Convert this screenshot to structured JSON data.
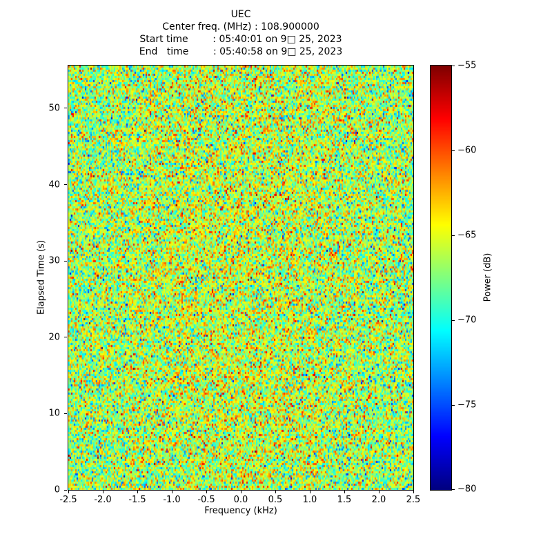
{
  "header": {
    "title": "UEC",
    "lines": [
      "Center freq. (MHz) : 108.900000",
      "Start time        : 05:40:01 on 9□ 25, 2023",
      "End   time        : 05:40:58 on 9□ 25, 2023"
    ]
  },
  "chart_data": {
    "type": "heatmap",
    "title": "UEC",
    "center_freq_mhz": "108.900000",
    "start_time": "05:40:01 on 9□ 25, 2023",
    "end_time": "05:40:58 on 9□ 25, 2023",
    "xlabel": "Frequency (kHz)",
    "ylabel": "Elapsed Time (s)",
    "colorbar_label": "Power (dB)",
    "xlim": [
      -2.5,
      2.5
    ],
    "ylim": [
      0,
      55.6
    ],
    "vmin": -80,
    "vmax": -55,
    "colormap": "jet",
    "xticks": [
      -2.5,
      -2.0,
      -1.5,
      -1.0,
      -0.5,
      0.0,
      0.5,
      1.0,
      1.5,
      2.0,
      2.5
    ],
    "xtick_labels": [
      "-2.5",
      "-2.0",
      "-1.5",
      "-1.0",
      "-0.5",
      "0.0",
      "0.5",
      "1.0",
      "1.5",
      "2.0",
      "2.5"
    ],
    "yticks": [
      0,
      10,
      20,
      30,
      40,
      50
    ],
    "ytick_labels": [
      "0",
      "10",
      "20",
      "30",
      "40",
      "50"
    ],
    "colorbar_ticks": [
      -55,
      -60,
      -65,
      -70,
      -75,
      -80
    ],
    "colorbar_tick_labels": [
      "−55",
      "−60",
      "−65",
      "−70",
      "−75",
      "−80"
    ],
    "noise": {
      "description": "broadband random noise, no coherent signal; slightly warmer (higher power) toward band center",
      "mean_db": -67.6,
      "sigma_db": 3.4,
      "center_excess_db": 1.4,
      "seed": 1234,
      "cols": 250,
      "rows": 205
    }
  }
}
